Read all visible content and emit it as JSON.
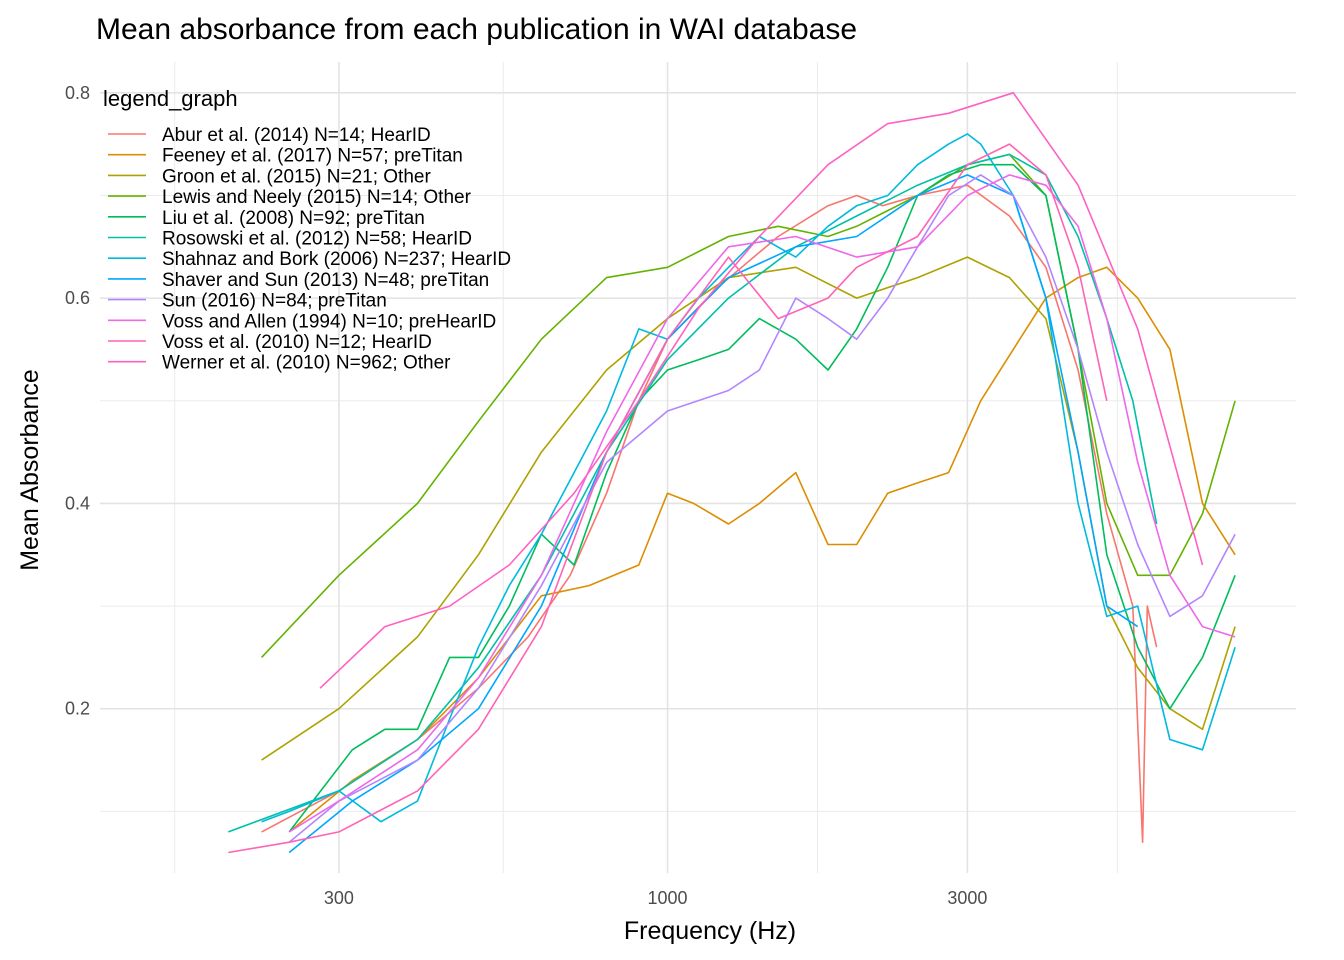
{
  "chart_data": {
    "type": "line",
    "title": "Mean absorbance from each publication in WAI database",
    "xlabel": "Frequency (Hz)",
    "ylabel": "Mean Absorbance",
    "xscale": "log10",
    "xlim": [
      125,
      10000
    ],
    "ylim": [
      0.04,
      0.83
    ],
    "xticks": [
      300,
      1000,
      3000
    ],
    "xtick_labels": [
      "300",
      "1000",
      "3000"
    ],
    "yticks": [
      0.2,
      0.4,
      0.6,
      0.8
    ],
    "ytick_labels": [
      "0.2",
      "0.4",
      "0.6",
      "0.8"
    ],
    "grid": true,
    "legend_title": "legend_graph",
    "legend_position": "top-left",
    "series": [
      {
        "name": "Abur et al. (2014) N=14; HearID",
        "color": "#F8766D",
        "x": [
          226,
          300,
          400,
          500,
          600,
          700,
          800,
          900,
          1000,
          1200,
          1500,
          1800,
          2000,
          2200,
          2500,
          3000,
          3500,
          4000,
          4500,
          5000,
          5500,
          5700,
          5800,
          6000
        ],
        "y": [
          0.08,
          0.12,
          0.17,
          0.22,
          0.27,
          0.33,
          0.41,
          0.5,
          0.56,
          0.61,
          0.66,
          0.69,
          0.7,
          0.69,
          0.7,
          0.71,
          0.68,
          0.63,
          0.53,
          0.39,
          0.3,
          0.07,
          0.3,
          0.26
        ]
      },
      {
        "name": "Feeney et al. (2017) N=57; preTitan",
        "color": "#DB8E00",
        "x": [
          250,
          315,
          400,
          500,
          630,
          750,
          900,
          1000,
          1100,
          1250,
          1400,
          1600,
          1800,
          2000,
          2240,
          2500,
          2800,
          3150,
          3550,
          4000,
          4500,
          5000,
          5600,
          6300,
          7100,
          8000
        ],
        "y": [
          0.08,
          0.13,
          0.17,
          0.23,
          0.31,
          0.32,
          0.34,
          0.41,
          0.4,
          0.38,
          0.4,
          0.43,
          0.36,
          0.36,
          0.41,
          0.42,
          0.43,
          0.5,
          0.55,
          0.6,
          0.62,
          0.63,
          0.6,
          0.55,
          0.4,
          0.35
        ]
      },
      {
        "name": "Groon et al. (2015) N=21; Other",
        "color": "#AEA200",
        "x": [
          226,
          300,
          400,
          500,
          630,
          800,
          1000,
          1250,
          1600,
          2000,
          2500,
          3000,
          3500,
          4000,
          4500,
          5000,
          5600,
          6300,
          7100,
          8000
        ],
        "y": [
          0.15,
          0.2,
          0.27,
          0.35,
          0.45,
          0.53,
          0.58,
          0.62,
          0.63,
          0.6,
          0.62,
          0.64,
          0.62,
          0.58,
          0.45,
          0.3,
          0.24,
          0.2,
          0.18,
          0.28
        ]
      },
      {
        "name": "Lewis and Neely (2015) N=14; Other",
        "color": "#64B200",
        "x": [
          226,
          300,
          400,
          500,
          630,
          800,
          1000,
          1250,
          1500,
          1800,
          2000,
          2500,
          3000,
          3500,
          4000,
          4500,
          5000,
          5600,
          6300,
          7100,
          8000
        ],
        "y": [
          0.25,
          0.33,
          0.4,
          0.48,
          0.56,
          0.62,
          0.63,
          0.66,
          0.67,
          0.66,
          0.67,
          0.7,
          0.73,
          0.74,
          0.7,
          0.55,
          0.4,
          0.33,
          0.33,
          0.39,
          0.5
        ]
      },
      {
        "name": "Liu et al. (2008) N=92; preTitan",
        "color": "#00BD5C",
        "x": [
          250,
          315,
          355,
          400,
          450,
          500,
          560,
          630,
          710,
          800,
          900,
          1000,
          1120,
          1250,
          1400,
          1600,
          1800,
          2000,
          2240,
          2500,
          2800,
          3150,
          3550,
          4000,
          4500,
          5000,
          5600,
          6300,
          7100,
          8000
        ],
        "y": [
          0.08,
          0.16,
          0.18,
          0.18,
          0.25,
          0.25,
          0.3,
          0.37,
          0.34,
          0.43,
          0.5,
          0.53,
          0.54,
          0.55,
          0.58,
          0.56,
          0.53,
          0.57,
          0.63,
          0.7,
          0.72,
          0.73,
          0.73,
          0.7,
          0.55,
          0.35,
          0.26,
          0.2,
          0.25,
          0.33
        ]
      },
      {
        "name": "Rosowski et al. (2012) N=58; HearID",
        "color": "#00C1A7",
        "x": [
          200,
          300,
          400,
          500,
          630,
          800,
          1000,
          1250,
          1600,
          2000,
          2500,
          3000,
          3500,
          4000,
          4500,
          5000,
          5500,
          6000
        ],
        "y": [
          0.08,
          0.12,
          0.17,
          0.24,
          0.33,
          0.45,
          0.54,
          0.6,
          0.65,
          0.68,
          0.71,
          0.73,
          0.74,
          0.72,
          0.66,
          0.58,
          0.5,
          0.38
        ]
      },
      {
        "name": "Shahnaz and Bork (2006) N=237; HearID",
        "color": "#00BADE",
        "x": [
          226,
          250,
          300,
          350,
          400,
          450,
          500,
          560,
          630,
          710,
          800,
          900,
          1000,
          1120,
          1250,
          1400,
          1600,
          1800,
          2000,
          2240,
          2500,
          2800,
          3000,
          3150,
          3550,
          4000,
          4500,
          5000,
          5600,
          6300,
          7100,
          8000
        ],
        "y": [
          0.09,
          0.1,
          0.12,
          0.09,
          0.11,
          0.19,
          0.26,
          0.32,
          0.37,
          0.43,
          0.49,
          0.57,
          0.56,
          0.6,
          0.63,
          0.66,
          0.64,
          0.67,
          0.69,
          0.7,
          0.73,
          0.75,
          0.76,
          0.75,
          0.7,
          0.6,
          0.4,
          0.29,
          0.3,
          0.17,
          0.16,
          0.26
        ]
      },
      {
        "name": "Shaver and Sun (2013) N=48; preTitan",
        "color": "#00A6FF",
        "x": [
          250,
          315,
          400,
          500,
          630,
          800,
          1000,
          1250,
          1600,
          2000,
          2500,
          3000,
          3550,
          4000,
          4500,
          5000,
          5600
        ],
        "y": [
          0.06,
          0.11,
          0.15,
          0.2,
          0.3,
          0.45,
          0.56,
          0.62,
          0.65,
          0.66,
          0.7,
          0.72,
          0.7,
          0.6,
          0.45,
          0.3,
          0.28
        ]
      },
      {
        "name": "Sun (2016) N=84; preTitan",
        "color": "#B385FF",
        "x": [
          250,
          300,
          400,
          500,
          630,
          800,
          1000,
          1250,
          1400,
          1600,
          1800,
          2000,
          2240,
          2500,
          2800,
          3150,
          3550,
          4000,
          4500,
          5000,
          5600,
          6300,
          7100,
          8000
        ],
        "y": [
          0.07,
          0.11,
          0.15,
          0.22,
          0.32,
          0.44,
          0.49,
          0.51,
          0.53,
          0.6,
          0.58,
          0.56,
          0.6,
          0.65,
          0.7,
          0.72,
          0.7,
          0.64,
          0.55,
          0.45,
          0.36,
          0.29,
          0.31,
          0.37
        ]
      },
      {
        "name": "Voss and Allen (1994) N=10; preHearID",
        "color": "#EF67EB",
        "x": [
          250,
          300,
          400,
          500,
          630,
          800,
          1000,
          1250,
          1600,
          2000,
          2500,
          3000,
          3500,
          4000,
          4500,
          5000,
          5600,
          6300,
          7100,
          8000
        ],
        "y": [
          0.08,
          0.11,
          0.16,
          0.23,
          0.33,
          0.47,
          0.58,
          0.65,
          0.66,
          0.64,
          0.65,
          0.7,
          0.72,
          0.71,
          0.67,
          0.58,
          0.44,
          0.33,
          0.28,
          0.27
        ]
      },
      {
        "name": "Voss et al. (2010) N=12; HearID",
        "color": "#FF63B6",
        "x": [
          200,
          250,
          300,
          400,
          500,
          630,
          800,
          1000,
          1250,
          1500,
          1800,
          2000,
          2500,
          3000,
          3500,
          4000,
          4500,
          5000
        ],
        "y": [
          0.06,
          0.07,
          0.08,
          0.12,
          0.18,
          0.28,
          0.45,
          0.56,
          0.64,
          0.58,
          0.6,
          0.63,
          0.66,
          0.73,
          0.75,
          0.72,
          0.63,
          0.5
        ]
      },
      {
        "name": "Werner et al. (2010) N=962; Other",
        "color": "#FF61C3",
        "x": [
          280,
          355,
          450,
          560,
          710,
          900,
          1120,
          1400,
          1800,
          2240,
          2800,
          3550,
          4500,
          5600,
          7100
        ],
        "y": [
          0.22,
          0.28,
          0.3,
          0.34,
          0.41,
          0.5,
          0.59,
          0.66,
          0.73,
          0.77,
          0.78,
          0.8,
          0.71,
          0.57,
          0.34
        ]
      }
    ]
  }
}
